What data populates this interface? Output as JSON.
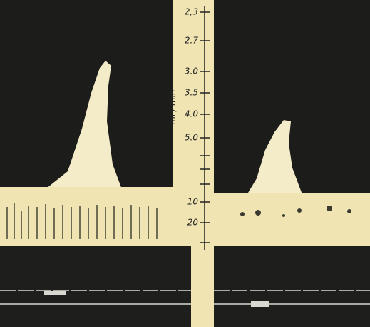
{
  "axis": {
    "label": "ml / min",
    "ticks": [
      "2,3",
      "2.7",
      "3.0",
      "3.5",
      "4.0",
      "5.0",
      "10",
      "20"
    ]
  }
}
